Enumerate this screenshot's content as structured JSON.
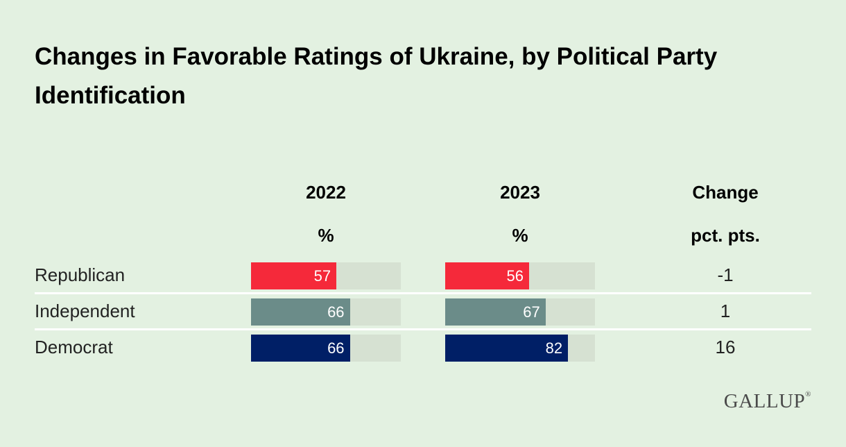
{
  "chart_data": {
    "type": "bar",
    "title": "Changes in Favorable Ratings of Ukraine, by Political Party Identification",
    "categories": [
      "Republican",
      "Independent",
      "Democrat"
    ],
    "series": [
      {
        "name": "2022",
        "unit": "%",
        "values": [
          57,
          66,
          66
        ]
      },
      {
        "name": "2023",
        "unit": "%",
        "values": [
          56,
          67,
          82
        ]
      }
    ],
    "change": {
      "name": "Change",
      "unit": "pct. pts.",
      "values": [
        "-1",
        "1",
        "16"
      ]
    },
    "xlim": [
      0,
      100
    ],
    "colors": {
      "Republican": "#f5293a",
      "Independent": "#6b8c89",
      "Democrat": "#001f66",
      "track": "#d6e1d2",
      "background": "#e3f1e1"
    }
  },
  "brand": {
    "logo": "GALLUP",
    "mark": "®"
  }
}
